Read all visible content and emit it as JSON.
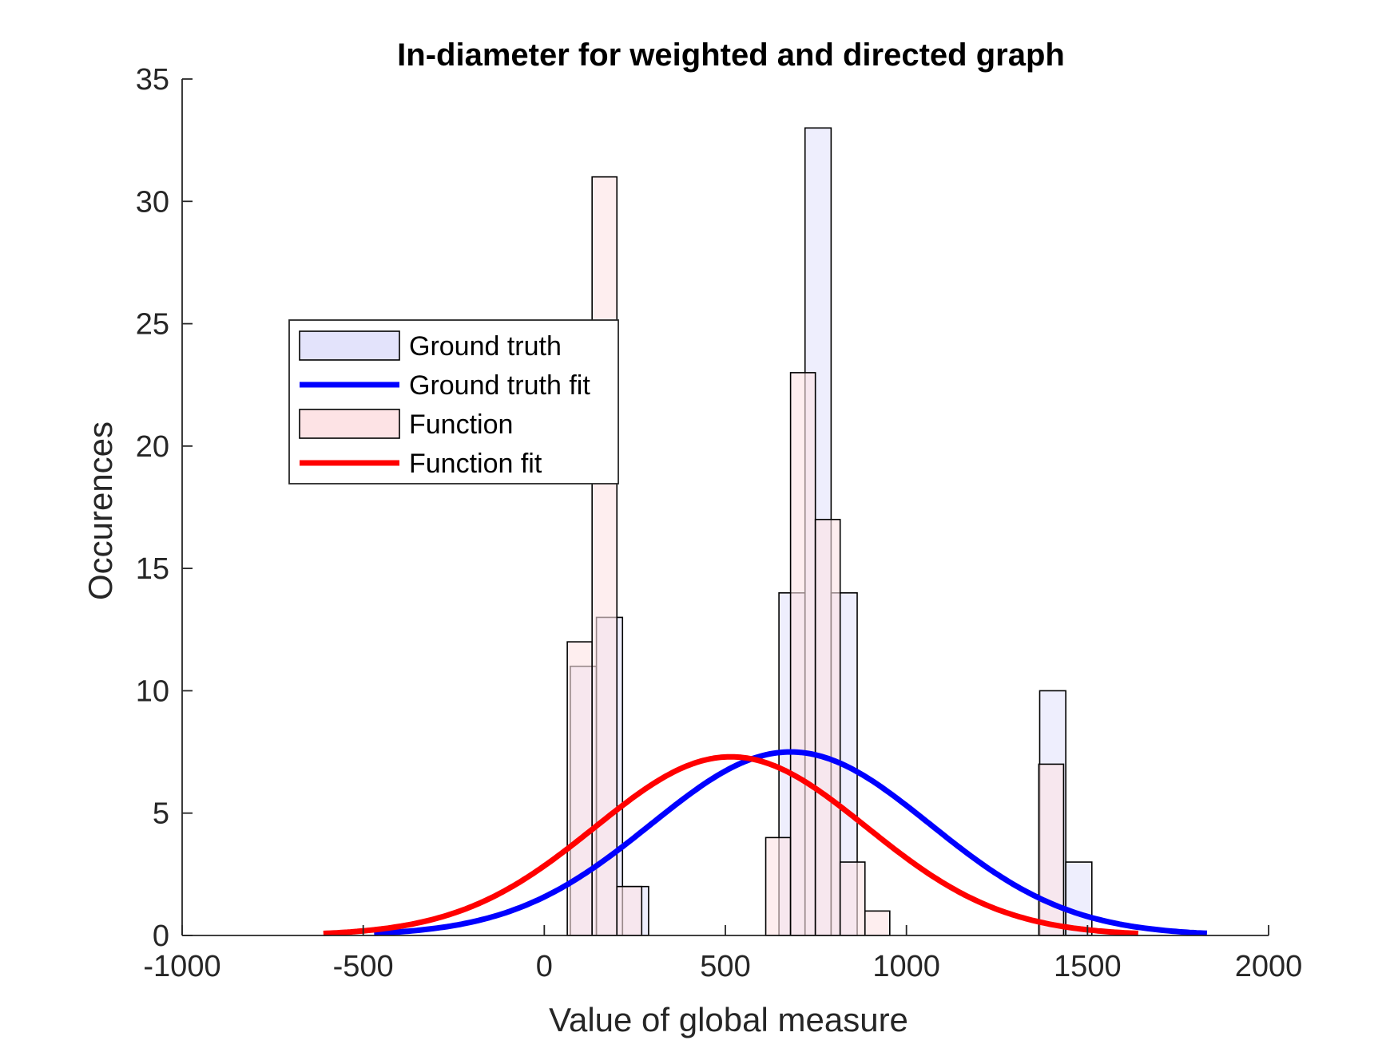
{
  "chart_data": {
    "type": "bar",
    "title": "In-diameter for weighted and directed graph",
    "xlabel": "Value of global measure",
    "ylabel": "Occurences",
    "xlim": [
      -1000,
      2000
    ],
    "ylim": [
      0,
      35
    ],
    "x_ticks": [
      -1000,
      -500,
      0,
      500,
      1000,
      1500,
      2000
    ],
    "x_tick_labels": [
      "-1000",
      "-500",
      "0",
      "500",
      "1000",
      "1500",
      "2000"
    ],
    "y_ticks": [
      0,
      5,
      10,
      15,
      20,
      25,
      30,
      35
    ],
    "y_tick_labels": [
      "0",
      "5",
      "10",
      "15",
      "20",
      "25",
      "30",
      "35"
    ],
    "grid": false,
    "legend_position": "upper-left",
    "series": [
      {
        "name": "Ground truth",
        "kind": "histogram",
        "color": "#e3e3fb",
        "bin_width": 72,
        "bins": [
          {
            "x0": 72,
            "x1": 144,
            "count": 11
          },
          {
            "x0": 144,
            "x1": 216,
            "count": 13
          },
          {
            "x0": 216,
            "x1": 288,
            "count": 2
          },
          {
            "x0": 648,
            "x1": 720,
            "count": 14
          },
          {
            "x0": 720,
            "x1": 792,
            "count": 33
          },
          {
            "x0": 792,
            "x1": 864,
            "count": 14
          },
          {
            "x0": 1368,
            "x1": 1440,
            "count": 10
          },
          {
            "x0": 1440,
            "x1": 1512,
            "count": 3
          }
        ]
      },
      {
        "name": "Ground truth fit",
        "kind": "normal_fit",
        "color": "#0000ff",
        "mean": 680,
        "peak": 7.5,
        "std": 385,
        "x_range": [
          -470,
          1830
        ]
      },
      {
        "name": "Function",
        "kind": "histogram",
        "color": "#fde3e5",
        "bin_width": 68.5,
        "bins": [
          {
            "x0": 63.5,
            "x1": 132,
            "count": 12
          },
          {
            "x0": 132,
            "x1": 200.5,
            "count": 31
          },
          {
            "x0": 200.5,
            "x1": 269,
            "count": 2
          },
          {
            "x0": 611.5,
            "x1": 680,
            "count": 4
          },
          {
            "x0": 680,
            "x1": 748.5,
            "count": 23
          },
          {
            "x0": 748.5,
            "x1": 817,
            "count": 17
          },
          {
            "x0": 817,
            "x1": 885.5,
            "count": 3
          },
          {
            "x0": 885.5,
            "x1": 954,
            "count": 1
          },
          {
            "x0": 1365.5,
            "x1": 1434,
            "count": 7
          }
        ]
      },
      {
        "name": "Function fit",
        "kind": "normal_fit",
        "color": "#ff0000",
        "mean": 515,
        "peak": 7.3,
        "std": 375,
        "x_range": [
          -610,
          1640
        ]
      }
    ]
  }
}
